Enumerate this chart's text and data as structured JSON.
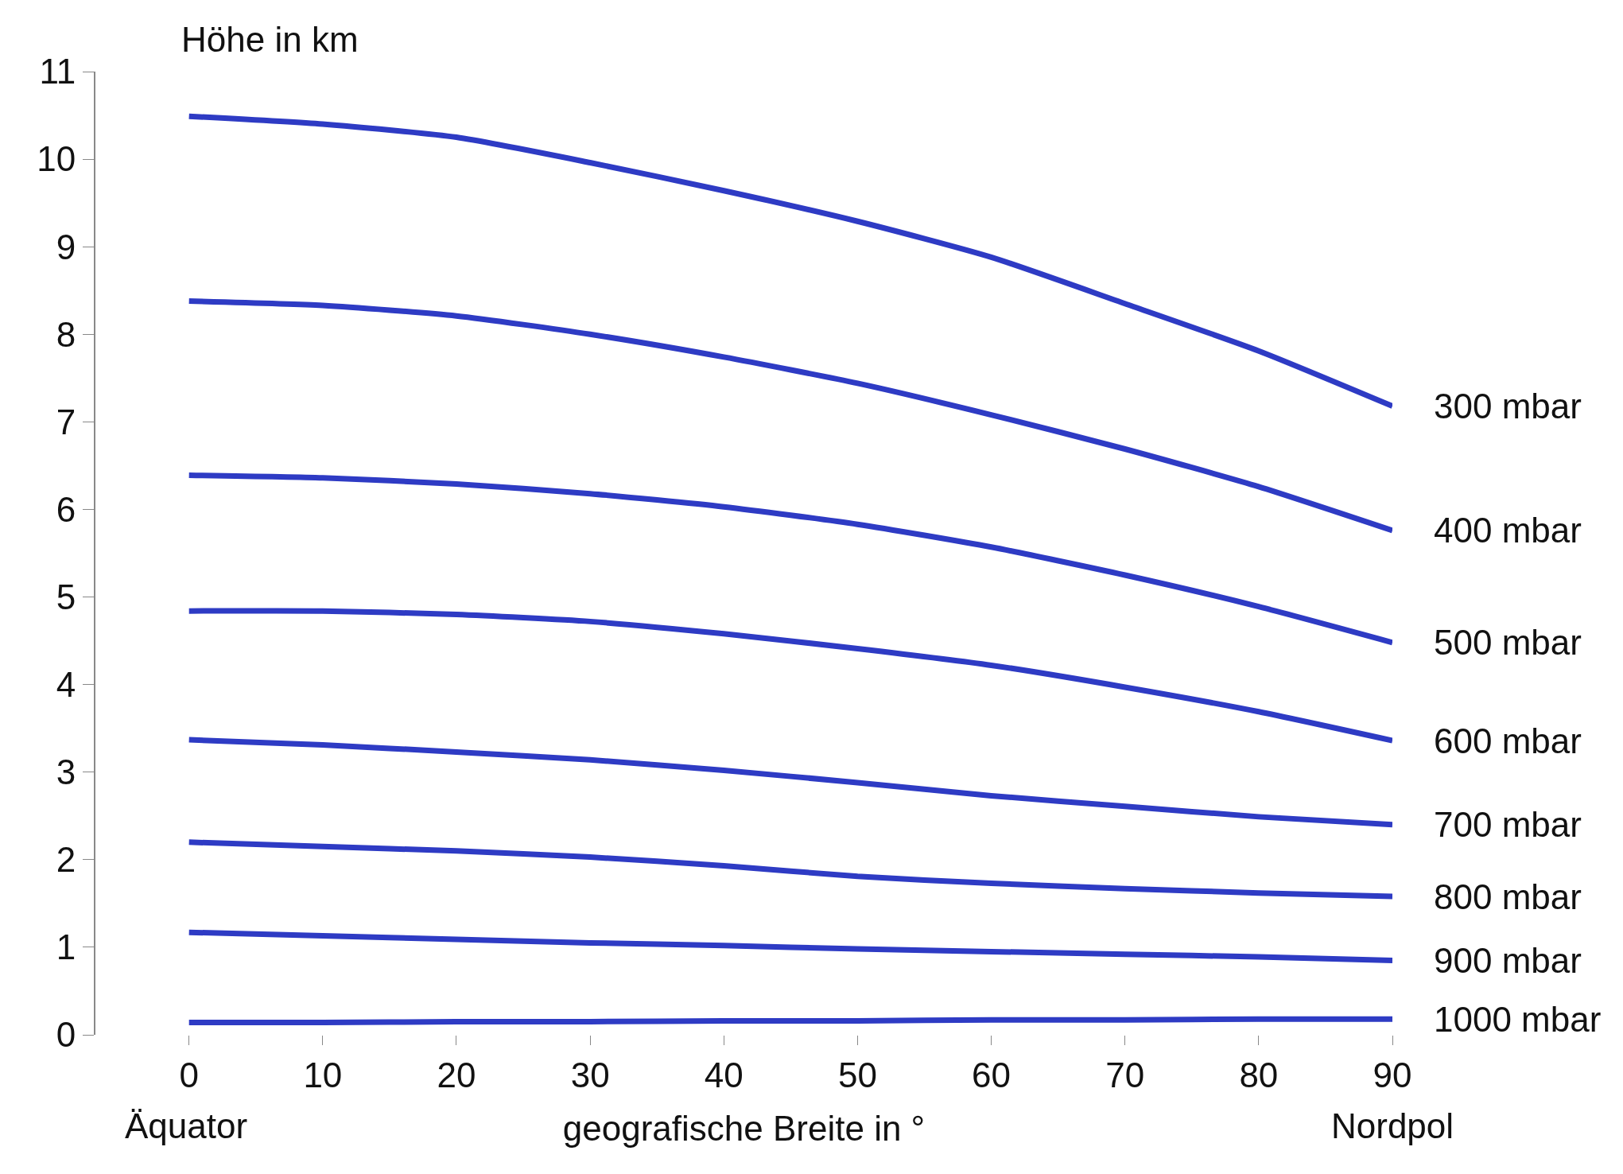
{
  "chart_data": {
    "type": "line",
    "xlabel": "geografische Breite in °",
    "ylabel": "Höhe in km",
    "annotations": [
      "Äquator",
      "Nordpol"
    ],
    "xlim": [
      -7,
      90
    ],
    "xticks": [
      0,
      10,
      20,
      30,
      40,
      50,
      60,
      70,
      80,
      90
    ],
    "ylim": [
      0,
      11
    ],
    "yticks": [
      0,
      1,
      2,
      3,
      4,
      5,
      6,
      7,
      8,
      9,
      10,
      11
    ],
    "grid": false,
    "legend": false,
    "marker": "none",
    "line_style": "solid",
    "x": [
      0,
      10,
      20,
      30,
      40,
      50,
      60,
      70,
      80,
      90
    ],
    "series": [
      {
        "name": "300 mbar",
        "color": "#2e3bc4",
        "values": [
          10.49,
          10.4,
          10.25,
          9.96,
          9.64,
          9.29,
          8.88,
          8.35,
          7.81,
          7.18
        ]
      },
      {
        "name": "400 mbar",
        "color": "#2e3bc4",
        "values": [
          8.38,
          8.33,
          8.21,
          8.0,
          7.74,
          7.44,
          7.08,
          6.69,
          6.26,
          5.76
        ]
      },
      {
        "name": "500 mbar",
        "color": "#2e3bc4",
        "values": [
          6.39,
          6.36,
          6.29,
          6.18,
          6.03,
          5.83,
          5.57,
          5.25,
          4.89,
          4.48
        ]
      },
      {
        "name": "600 mbar",
        "color": "#2e3bc4",
        "values": [
          4.84,
          4.84,
          4.8,
          4.72,
          4.58,
          4.41,
          4.22,
          3.97,
          3.69,
          3.36
        ]
      },
      {
        "name": "700 mbar",
        "color": "#2e3bc4",
        "values": [
          3.37,
          3.31,
          3.23,
          3.14,
          3.02,
          2.88,
          2.73,
          2.61,
          2.49,
          2.4
        ]
      },
      {
        "name": "800 mbar",
        "color": "#2e3bc4",
        "values": [
          2.2,
          2.15,
          2.1,
          2.03,
          1.93,
          1.81,
          1.73,
          1.67,
          1.62,
          1.58
        ]
      },
      {
        "name": "900 mbar",
        "color": "#2e3bc4",
        "values": [
          1.17,
          1.13,
          1.09,
          1.05,
          1.02,
          0.98,
          0.95,
          0.92,
          0.89,
          0.85
        ]
      },
      {
        "name": "1000 mbar",
        "color": "#2e3bc4",
        "values": [
          0.14,
          0.14,
          0.15,
          0.15,
          0.16,
          0.16,
          0.17,
          0.17,
          0.18,
          0.18
        ]
      }
    ]
  }
}
